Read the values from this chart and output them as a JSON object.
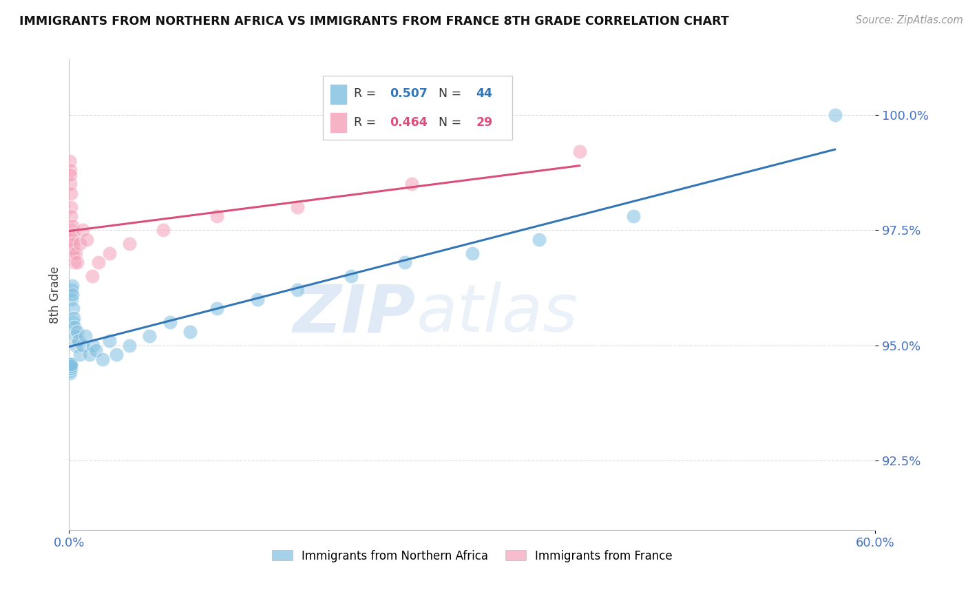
{
  "title": "IMMIGRANTS FROM NORTHERN AFRICA VS IMMIGRANTS FROM FRANCE 8TH GRADE CORRELATION CHART",
  "source": "Source: ZipAtlas.com",
  "ylabel": "8th Grade",
  "ytick_values": [
    92.5,
    95.0,
    97.5,
    100.0
  ],
  "xlim": [
    0.0,
    60.0
  ],
  "ylim": [
    91.0,
    101.2
  ],
  "legend_blue_label": "Immigrants from Northern Africa",
  "legend_pink_label": "Immigrants from France",
  "R_blue": 0.507,
  "N_blue": 44,
  "R_pink": 0.464,
  "N_pink": 29,
  "blue_color": "#7fbfdf",
  "pink_color": "#f4a0b8",
  "blue_line_color": "#3375b5",
  "pink_line_color": "#d94f7a",
  "watermark_zip": "ZIP",
  "watermark_atlas": "atlas",
  "blue_x": [
    0.05,
    0.05,
    0.07,
    0.08,
    0.09,
    0.1,
    0.1,
    0.12,
    0.13,
    0.15,
    0.18,
    0.2,
    0.22,
    0.25,
    0.28,
    0.3,
    0.35,
    0.4,
    0.45,
    0.5,
    0.6,
    0.7,
    0.8,
    1.0,
    1.2,
    1.5,
    1.8,
    2.0,
    2.5,
    3.0,
    3.5,
    4.5,
    6.0,
    7.5,
    9.0,
    11.0,
    14.0,
    17.0,
    21.0,
    25.0,
    30.0,
    35.0,
    42.0,
    57.0
  ],
  "blue_y": [
    94.6,
    94.5,
    94.55,
    94.4,
    94.5,
    94.45,
    94.6,
    94.5,
    94.55,
    94.6,
    96.2,
    96.0,
    96.3,
    96.1,
    95.8,
    95.5,
    95.6,
    95.4,
    95.2,
    95.0,
    95.3,
    95.1,
    94.8,
    95.0,
    95.2,
    94.8,
    95.0,
    94.9,
    94.7,
    95.1,
    94.8,
    95.0,
    95.2,
    95.5,
    95.3,
    95.8,
    96.0,
    96.2,
    96.5,
    96.8,
    97.0,
    97.3,
    97.8,
    100.0
  ],
  "pink_x": [
    0.05,
    0.07,
    0.08,
    0.1,
    0.12,
    0.13,
    0.15,
    0.18,
    0.2,
    0.22,
    0.25,
    0.28,
    0.3,
    0.35,
    0.4,
    0.5,
    0.6,
    0.8,
    1.0,
    1.3,
    1.7,
    2.2,
    3.0,
    4.5,
    7.0,
    11.0,
    17.0,
    25.5,
    38.0
  ],
  "pink_y": [
    99.0,
    98.8,
    98.5,
    98.7,
    98.3,
    98.0,
    97.8,
    97.5,
    97.3,
    97.6,
    97.1,
    97.4,
    97.0,
    97.2,
    96.8,
    97.0,
    96.8,
    97.2,
    97.5,
    97.3,
    96.5,
    96.8,
    97.0,
    97.2,
    97.5,
    97.8,
    98.0,
    98.5,
    99.2
  ]
}
